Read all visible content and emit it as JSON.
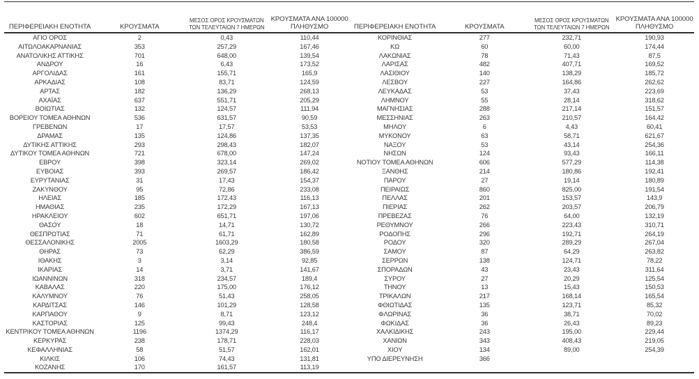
{
  "page": {
    "background_color": "#ffffff",
    "text_color": "#383838",
    "border_color": "#2e2e2e"
  },
  "headers": {
    "region": "ΠΕΡΙΦΕΡΕΙΑΚΗ ΕΝΟΤΗΤΑ",
    "cases": "ΚΡΟΥΣΜΑΤΑ",
    "avg7_line1": "ΜΕΣΟΣ ΟΡΟΣ ΚΡΟΥΣΜΑΤΩΝ",
    "avg7_line2": "ΤΩΝ ΤΕΛΕΥΤΑΙΩΝ 7 ΗΜΕΡΩΝ",
    "per100k_line1": "ΚΡΟΥΣΜΑΤΑ ΑΝΑ 100000",
    "per100k_line2": "ΠΛΗΘΥΣΜΟ"
  },
  "chart_data": {
    "type": "table",
    "columns": [
      "ΠΕΡΙΦΕΡΕΙΑΚΗ ΕΝΟΤΗΤΑ",
      "ΚΡΟΥΣΜΑΤΑ",
      "ΜΕΣΟΣ ΟΡΟΣ ΚΡΟΥΣΜΑΤΩΝ ΤΩΝ ΤΕΛΕΥΤΑΙΩΝ 7 ΗΜΕΡΩΝ",
      "ΚΡΟΥΣΜΑΤΑ ΑΝΑ 100000 ΠΛΗΘΥΣΜΟ"
    ],
    "left_rows": [
      [
        "ΑΓΙΟ ΟΡΟΣ",
        "2",
        "0,43",
        "110,44"
      ],
      [
        "ΑΙΤΩΛΟΑΚΑΡΝΑΝΙΑΣ",
        "353",
        "257,29",
        "167,46"
      ],
      [
        "ΑΝΑΤΟΛΙΚΗΣ ΑΤΤΙΚΗΣ",
        "701",
        "648,00",
        "139,54"
      ],
      [
        "ΑΝΔΡΟΥ",
        "16",
        "6,43",
        "173,52"
      ],
      [
        "ΑΡΓΟΛΙΔΑΣ",
        "161",
        "155,71",
        "165,9"
      ],
      [
        "ΑΡΚΑΔΙΑΣ",
        "108",
        "83,71",
        "124,59"
      ],
      [
        "ΑΡΤΑΣ",
        "182",
        "136,29",
        "268,13"
      ],
      [
        "ΑΧΑΪΑΣ",
        "637",
        "551,71",
        "205,29"
      ],
      [
        "ΒΟΙΩΤΙΑΣ",
        "132",
        "124,57",
        "111,94"
      ],
      [
        "ΒΟΡΕΙΟΥ ΤΟΜΕΑ ΑΘΗΝΩΝ",
        "536",
        "631,57",
        "90,59"
      ],
      [
        "ΓΡΕΒΕΝΩΝ",
        "17",
        "17,57",
        "53,53"
      ],
      [
        "ΔΡΑΜΑΣ",
        "135",
        "124,86",
        "137,35"
      ],
      [
        "ΔΥΤΙΚΗΣ ΑΤΤΙΚΗΣ",
        "293",
        "298,43",
        "182,07"
      ],
      [
        "ΔΥΤΙΚΟΥ ΤΟΜΕΑ ΑΘΗΝΩΝ",
        "721",
        "678,00",
        "147,24"
      ],
      [
        "ΕΒΡΟΥ",
        "398",
        "323,14",
        "269,02"
      ],
      [
        "ΕΥΒΟΙΑΣ",
        "393",
        "269,57",
        "186,42"
      ],
      [
        "ΕΥΡΥΤΑΝΙΑΣ",
        "31",
        "17,43",
        "154,37"
      ],
      [
        "ΖΑΚΥΝΘΟΥ",
        "95",
        "72,86",
        "233,08"
      ],
      [
        "ΗΛΕΙΑΣ",
        "185",
        "172,43",
        "116,13"
      ],
      [
        "ΗΜΑΘΙΑΣ",
        "235",
        "172,29",
        "167,13"
      ],
      [
        "ΗΡΑΚΛΕΙΟΥ",
        "602",
        "651,71",
        "197,06"
      ],
      [
        "ΘΑΣΟΥ",
        "18",
        "14,71",
        "130,72"
      ],
      [
        "ΘΕΣΠΡΩΤΙΑΣ",
        "71",
        "61,71",
        "162,89"
      ],
      [
        "ΘΕΣΣΑΛΟΝΙΚΗΣ",
        "2005",
        "1603,29",
        "180,58"
      ],
      [
        "ΘΗΡΑΣ",
        "73",
        "62,29",
        "386,59"
      ],
      [
        "ΙΘΑΚΗΣ",
        "3",
        "3,14",
        "92,85"
      ],
      [
        "ΙΚΑΡΙΑΣ",
        "14",
        "3,71",
        "141,67"
      ],
      [
        "ΙΩΑΝΝΙΝΩΝ",
        "318",
        "234,57",
        "189,4"
      ],
      [
        "ΚΑΒΑΛΑΣ",
        "220",
        "175,00",
        "176,12"
      ],
      [
        "ΚΑΛΥΜΝΟΥ",
        "76",
        "51,43",
        "258,05"
      ],
      [
        "ΚΑΡΔΙΤΣΑΣ",
        "146",
        "101,29",
        "128,58"
      ],
      [
        "ΚΑΡΠΑΘΟΥ",
        "9",
        "8,71",
        "123,12"
      ],
      [
        "ΚΑΣΤΟΡΙΑΣ",
        "125",
        "99,43",
        "248,4"
      ],
      [
        "ΚΕΝΤΡΙΚΟΥ ΤΟΜΕΑ ΑΘΗΝΩΝ",
        "1196",
        "1374,29",
        "116,17"
      ],
      [
        "ΚΕΡΚΥΡΑΣ",
        "238",
        "178,71",
        "228,03"
      ],
      [
        "ΚΕΦΑΛΛΗΝΙΑΣ",
        "58",
        "51,57",
        "162,01"
      ],
      [
        "ΚΙΛΚΙΣ",
        "106",
        "74,43",
        "131,81"
      ],
      [
        "ΚΟΖΑΝΗΣ",
        "170",
        "161,57",
        "113,19"
      ]
    ],
    "right_rows": [
      [
        "ΚΟΡΙΝΘΙΑΣ",
        "277",
        "232,71",
        "190,93"
      ],
      [
        "ΚΩ",
        "60",
        "60,00",
        "174,44"
      ],
      [
        "ΛΑΚΩΝΙΑΣ",
        "78",
        "71,43",
        "87,5"
      ],
      [
        "ΛΑΡΙΣΑΣ",
        "482",
        "407,71",
        "169,52"
      ],
      [
        "ΛΑΣΙΘΙΟΥ",
        "140",
        "138,29",
        "185,72"
      ],
      [
        "ΛΕΣΒΟΥ",
        "227",
        "164,86",
        "262,62"
      ],
      [
        "ΛΕΥΚΑΔΑΣ",
        "53",
        "37,43",
        "223,69"
      ],
      [
        "ΛΗΜΝΟΥ",
        "55",
        "28,14",
        "318,62"
      ],
      [
        "ΜΑΓΝΗΣΙΑΣ",
        "288",
        "217,14",
        "151,57"
      ],
      [
        "ΜΕΣΣΗΝΙΑΣ",
        "263",
        "210,57",
        "164,42"
      ],
      [
        "ΜΗΛΟΥ",
        "6",
        "4,43",
        "60,41"
      ],
      [
        "ΜΥΚΟΝΟΥ",
        "63",
        "58,71",
        "621,67"
      ],
      [
        "ΝΑΞΟΥ",
        "53",
        "43,14",
        "254,36"
      ],
      [
        "ΝΗΣΩΝ",
        "124",
        "93,43",
        "166,11"
      ],
      [
        "ΝΟΤΙΟΥ ΤΟΜΕΑ ΑΘΗΝΩΝ",
        "606",
        "577,29",
        "114,38"
      ],
      [
        "ΞΑΝΘΗΣ",
        "214",
        "180,86",
        "192,41"
      ],
      [
        "ΠΑΡΟΥ",
        "27",
        "19,14",
        "180,89"
      ],
      [
        "ΠΕΙΡΑΙΩΣ",
        "860",
        "825,00",
        "191,54"
      ],
      [
        "ΠΕΛΛΑΣ",
        "201",
        "153,57",
        "143,9"
      ],
      [
        "ΠΙΕΡΙΑΣ",
        "262",
        "203,57",
        "206,79"
      ],
      [
        "ΠΡΕΒΕΖΑΣ",
        "76",
        "64,00",
        "132,19"
      ],
      [
        "ΡΕΘΥΜΝΟΥ",
        "266",
        "223,43",
        "310,71"
      ],
      [
        "ΡΟΔΟΠΗΣ",
        "296",
        "192,71",
        "264,19"
      ],
      [
        "ΡΟΔΟΥ",
        "320",
        "289,29",
        "267,04"
      ],
      [
        "ΣΑΜΟΥ",
        "87",
        "64,29",
        "263,82"
      ],
      [
        "ΣΕΡΡΩΝ",
        "138",
        "124,71",
        "78,22"
      ],
      [
        "ΣΠΟΡΑΔΩΝ",
        "43",
        "23,43",
        "311,64"
      ],
      [
        "ΣΥΡΟΥ",
        "27",
        "20,29",
        "125,54"
      ],
      [
        "ΤΗΝΟΥ",
        "13",
        "15,43",
        "150,53"
      ],
      [
        "ΤΡΙΚΑΛΩΝ",
        "217",
        "168,14",
        "165,54"
      ],
      [
        "ΦΘΙΩΤΙΔΑΣ",
        "135",
        "123,71",
        "85,32"
      ],
      [
        "ΦΛΩΡΙΝΑΣ",
        "36",
        "38,71",
        "70,02"
      ],
      [
        "ΦΩΚΙΔΑΣ",
        "36",
        "26,43",
        "89,23"
      ],
      [
        "ΧΑΛΚΙΔΙΚΗΣ",
        "243",
        "195,00",
        "229,44"
      ],
      [
        "ΧΑΝΙΩΝ",
        "343",
        "408,43",
        "219,05"
      ],
      [
        "ΧΙΟΥ",
        "134",
        "89,00",
        "254,39"
      ],
      [
        "ΥΠΟ ΔΙΕΡΕΥΝΗΣΗ",
        "366",
        "",
        ""
      ]
    ]
  }
}
